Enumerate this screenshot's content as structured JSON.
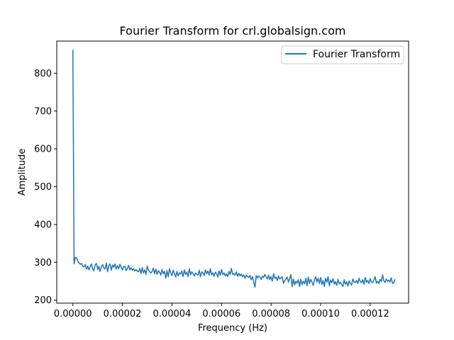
{
  "chart_data": {
    "type": "line",
    "title": "Fourier Transform for crl.globalsign.com",
    "xlabel": "Frequency (Hz)",
    "ylabel": "Amplitude",
    "xlim": [
      -6.5e-06,
      0.0001355
    ],
    "ylim": [
      192,
      885
    ],
    "xticks": [
      0,
      2e-05,
      4e-05,
      6e-05,
      8e-05,
      0.0001,
      0.00012
    ],
    "xtick_labels": [
      "0.00000",
      "0.00002",
      "0.00004",
      "0.00006",
      "0.00008",
      "0.00010",
      "0.00012"
    ],
    "yticks": [
      200,
      300,
      400,
      500,
      600,
      700,
      800
    ],
    "ytick_labels": [
      "200",
      "300",
      "400",
      "500",
      "600",
      "700",
      "800"
    ],
    "grid": false,
    "legend": {
      "position": "top-right"
    },
    "series": [
      {
        "name": "Fourier Transform",
        "color": "#1f77b4",
        "x_start": 0,
        "x_step": 5e-07,
        "values": [
          862,
          296,
          313,
          312,
          302,
          298,
          295,
          297,
          290,
          288,
          294,
          282,
          290,
          280,
          289,
          296,
          282,
          278,
          293,
          297,
          281,
          290,
          276,
          287,
          294,
          286,
          282,
          298,
          275,
          291,
          296,
          279,
          293,
          287,
          296,
          282,
          291,
          283,
          295,
          287,
          280,
          289,
          290,
          278,
          284,
          292,
          280,
          286,
          279,
          283,
          277,
          281,
          276,
          275,
          284,
          270,
          286,
          272,
          280,
          268,
          290,
          279,
          275,
          272,
          276,
          285,
          270,
          282,
          268,
          278,
          274,
          266,
          281,
          270,
          276,
          258,
          278,
          262,
          283,
          272,
          265,
          279,
          270,
          261,
          276,
          264,
          272,
          269,
          277,
          262,
          280,
          268,
          274,
          262,
          283,
          267,
          275,
          270,
          264,
          272,
          268,
          266,
          279,
          262,
          275,
          272,
          265,
          280,
          270,
          277,
          266,
          283,
          267,
          272,
          263,
          274,
          270,
          261,
          277,
          266,
          281,
          268,
          272,
          264,
          270,
          262,
          276,
          268,
          284,
          268,
          270,
          266,
          275,
          263,
          271,
          264,
          269,
          262,
          267,
          258,
          266,
          262,
          260,
          265,
          254,
          262,
          247,
          234,
          265,
          259,
          264,
          261,
          255,
          263,
          260,
          268,
          261,
          256,
          266,
          254,
          262,
          250,
          270,
          258,
          261,
          252,
          264,
          256,
          259,
          262,
          244,
          252,
          256,
          261,
          248,
          257,
          268,
          236,
          256,
          240,
          250,
          245,
          254,
          236,
          255,
          241,
          250,
          243,
          258,
          238,
          261,
          244,
          255,
          248,
          239,
          253,
          262,
          248,
          258,
          244,
          260,
          241,
          252,
          236,
          258,
          247,
          262,
          238,
          253,
          246,
          257,
          242,
          249,
          239,
          255,
          243,
          247,
          241,
          236,
          254,
          242,
          249,
          237,
          251,
          244,
          240,
          256,
          248,
          246,
          252,
          244,
          258,
          249,
          246,
          254,
          242,
          260,
          247,
          252,
          244,
          257,
          248,
          246,
          253,
          262,
          245,
          250,
          244,
          255,
          249,
          267,
          251,
          247,
          256,
          250,
          253,
          248,
          259,
          244,
          246,
          255
        ]
      }
    ]
  }
}
